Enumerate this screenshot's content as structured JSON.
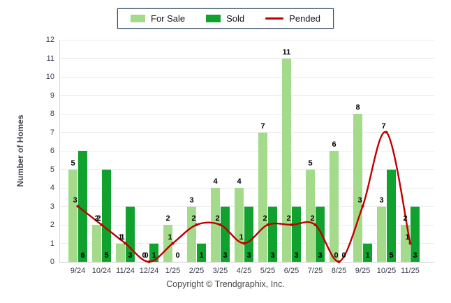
{
  "legend": {
    "items": [
      {
        "label": "For Sale",
        "color": "#a3db8b",
        "type": "box"
      },
      {
        "label": "Sold",
        "color": "#10a12f",
        "type": "box"
      },
      {
        "label": "Pended",
        "color": "#c00000",
        "type": "line"
      }
    ]
  },
  "chart_data": {
    "type": "bar",
    "categories": [
      "9/24",
      "10/24",
      "11/24",
      "12/24",
      "1/25",
      "2/25",
      "3/25",
      "4/25",
      "5/25",
      "6/25",
      "7/25",
      "8/25",
      "9/25",
      "10/25",
      "11/25"
    ],
    "series": [
      {
        "name": "For Sale",
        "chart_type": "bar",
        "color": "#a3db8b",
        "values": [
          5,
          2,
          1,
          0,
          2,
          3,
          4,
          4,
          7,
          11,
          5,
          6,
          8,
          3,
          2
        ]
      },
      {
        "name": "Sold",
        "chart_type": "bar",
        "color": "#10a12f",
        "values": [
          6,
          5,
          3,
          1,
          0,
          1,
          3,
          3,
          3,
          3,
          3,
          0,
          1,
          5,
          3
        ]
      },
      {
        "name": "Pended",
        "chart_type": "line",
        "color": "#c00000",
        "values": [
          3,
          2,
          1,
          0,
          1,
          2,
          2,
          1,
          2,
          2,
          2,
          0,
          3,
          7,
          1
        ]
      }
    ],
    "title": "",
    "xlabel": "",
    "ylabel": "Number of Homes",
    "ylim": [
      0,
      12
    ],
    "ytick_step": 1,
    "grid": true,
    "legend_position": "top",
    "data_labels": true
  },
  "footer": {
    "copyright": "Copyright © Trendgraphix, Inc."
  }
}
